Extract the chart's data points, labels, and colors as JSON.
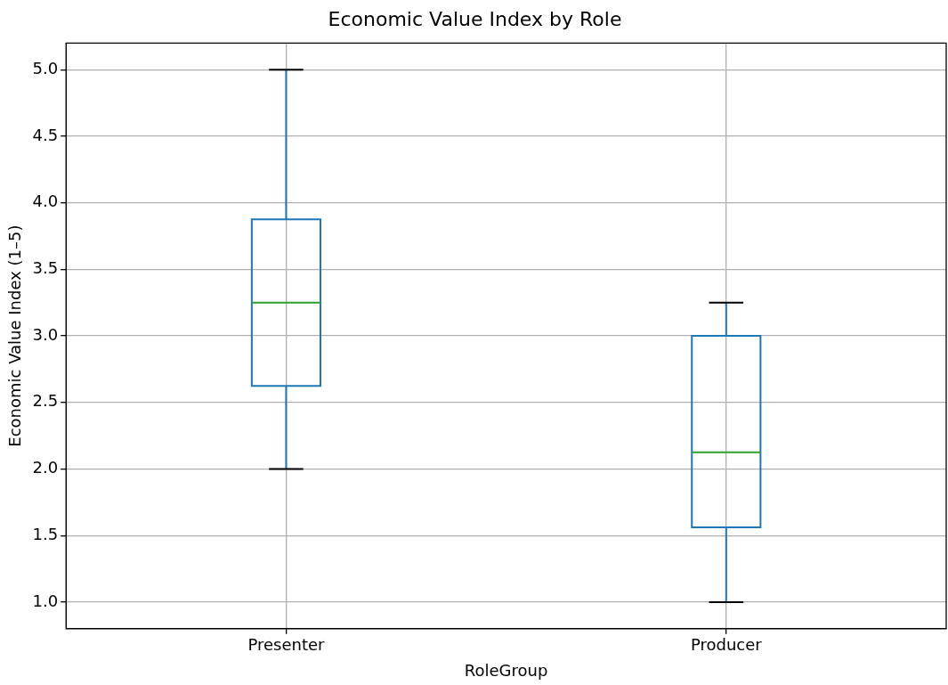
{
  "chart_data": {
    "type": "box",
    "title": "Economic Value Index by Role",
    "xlabel": "RoleGroup",
    "ylabel": "Economic Value Index (1–5)",
    "categories": [
      "Presenter",
      "Producer"
    ],
    "series": [
      {
        "color": "#1f77b4",
        "boxes": [
          {
            "low": 2.0,
            "q1": 2.625,
            "median": 3.25,
            "q3": 3.875,
            "high": 5.0
          },
          {
            "low": 1.0,
            "q1": 1.5625,
            "median": 2.125,
            "q3": 3.0,
            "high": 3.25
          }
        ]
      }
    ],
    "ylim": [
      0.8,
      5.2
    ],
    "yticks": [
      {
        "value": 1,
        "label": "1.0"
      },
      {
        "value": 1.5,
        "label": "1.5"
      },
      {
        "value": 2,
        "label": "2.0"
      },
      {
        "value": 2.5,
        "label": "2.5"
      },
      {
        "value": 3,
        "label": "3.0"
      },
      {
        "value": 3.5,
        "label": "3.5"
      },
      {
        "value": 4,
        "label": "4.0"
      },
      {
        "value": 4.5,
        "label": "4.5"
      },
      {
        "value": 5,
        "label": "5.0"
      }
    ],
    "grid": true
  }
}
